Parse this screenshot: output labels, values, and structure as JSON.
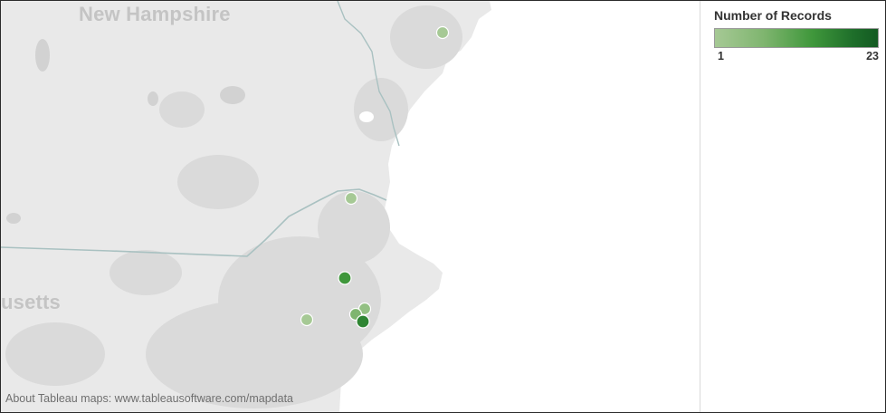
{
  "map": {
    "regions": [
      "New Hampshire",
      "usetts"
    ],
    "attribution": "About Tableau maps: www.tableausoftware.com/mapdata",
    "marker_colors": {
      "light": "#a6c995",
      "mid": "#7fb56f",
      "dark": "#2f8533"
    }
  },
  "legend": {
    "title": "Number of Records",
    "min_label": "1",
    "max_label": "23",
    "ramp": [
      "#a6c995",
      "#135a22"
    ]
  },
  "markers": [
    {
      "value": 1
    },
    {
      "value": 1
    },
    {
      "value": 12
    },
    {
      "value": 1
    },
    {
      "value": 4
    },
    {
      "value": 2
    },
    {
      "value": 12
    }
  ]
}
